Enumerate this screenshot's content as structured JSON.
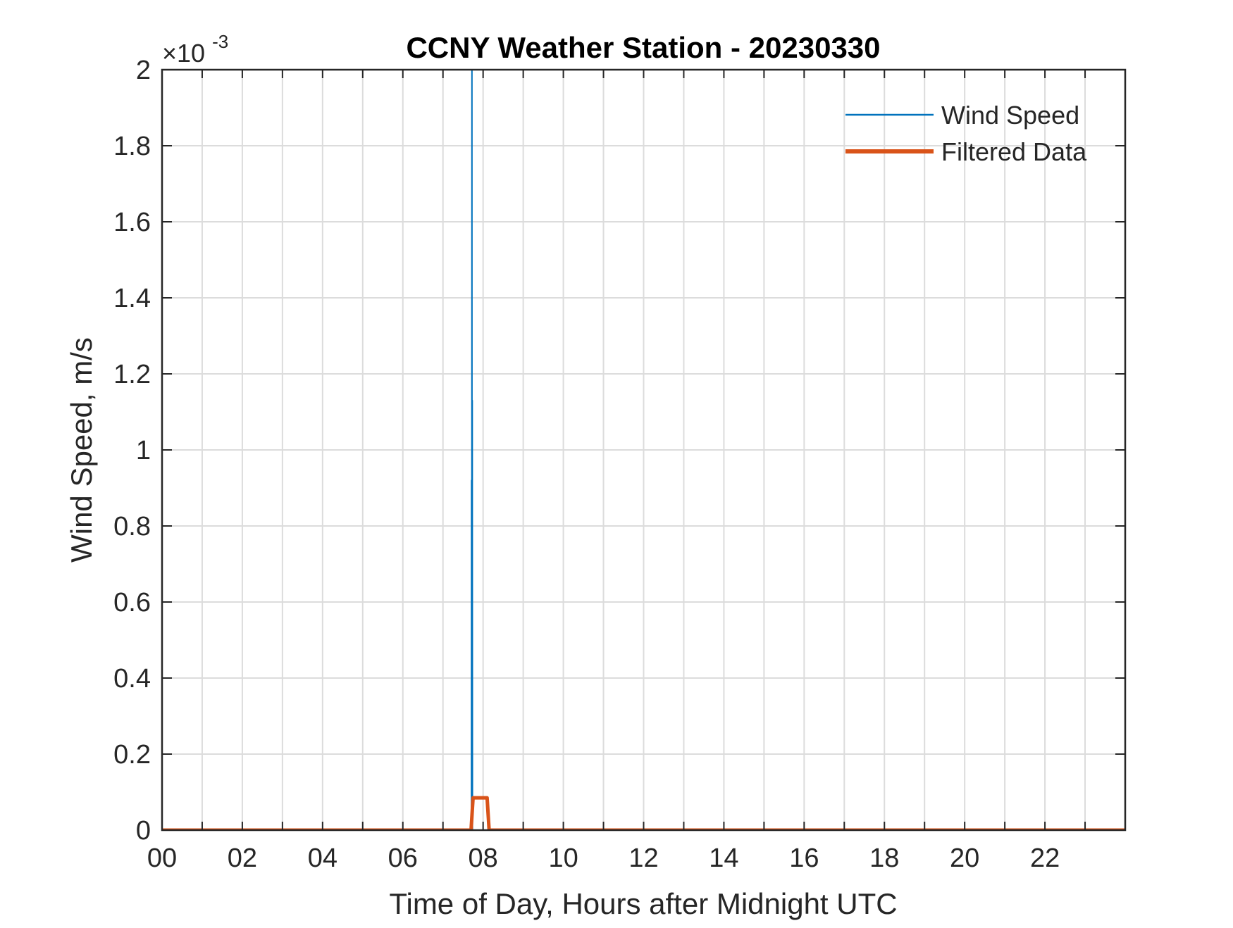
{
  "chart_data": {
    "type": "line",
    "title": "CCNY Weather Station - 20230330",
    "xlabel": "Time of Day, Hours after Midnight UTC",
    "ylabel": "Wind Speed, m/s",
    "exponent_label": {
      "base": "×10",
      "power": "-3"
    },
    "xlim": [
      0,
      24
    ],
    "ylim": [
      0,
      0.002
    ],
    "x_ticks": [
      0,
      2,
      4,
      6,
      8,
      10,
      12,
      14,
      16,
      18,
      20,
      22
    ],
    "x_tick_labels": [
      "00",
      "02",
      "04",
      "06",
      "08",
      "10",
      "12",
      "14",
      "16",
      "18",
      "20",
      "22"
    ],
    "x_minor_grid_step": 1,
    "y_ticks": [
      0,
      0.0002,
      0.0004,
      0.0006,
      0.0008,
      0.001,
      0.0012,
      0.0014,
      0.0016,
      0.0018,
      0.002
    ],
    "y_tick_labels": [
      "0",
      "0.2",
      "0.4",
      "0.6",
      "0.8",
      "1",
      "1.2",
      "1.4",
      "1.6",
      "1.8",
      "2"
    ],
    "grid": true,
    "legend_position": "top-right",
    "series": [
      {
        "name": "Wind Speed",
        "color": "#0072BD",
        "line_width": "thin",
        "x": [
          0,
          7.71,
          7.712,
          7.715,
          7.72,
          7.722,
          7.725,
          7.73,
          7.735,
          7.74,
          7.745,
          24
        ],
        "y": [
          0,
          0,
          0.00092,
          0.0,
          0.0009,
          0.00215,
          0.0,
          0.00113,
          0.0,
          0.0,
          0,
          0
        ]
      },
      {
        "name": "Filtered Data",
        "color": "#D95319",
        "line_width": "thick",
        "x": [
          0,
          7.7,
          7.75,
          8.1,
          8.15,
          24
        ],
        "y": [
          0,
          0,
          8.5e-05,
          8.5e-05,
          0,
          0
        ]
      }
    ]
  }
}
